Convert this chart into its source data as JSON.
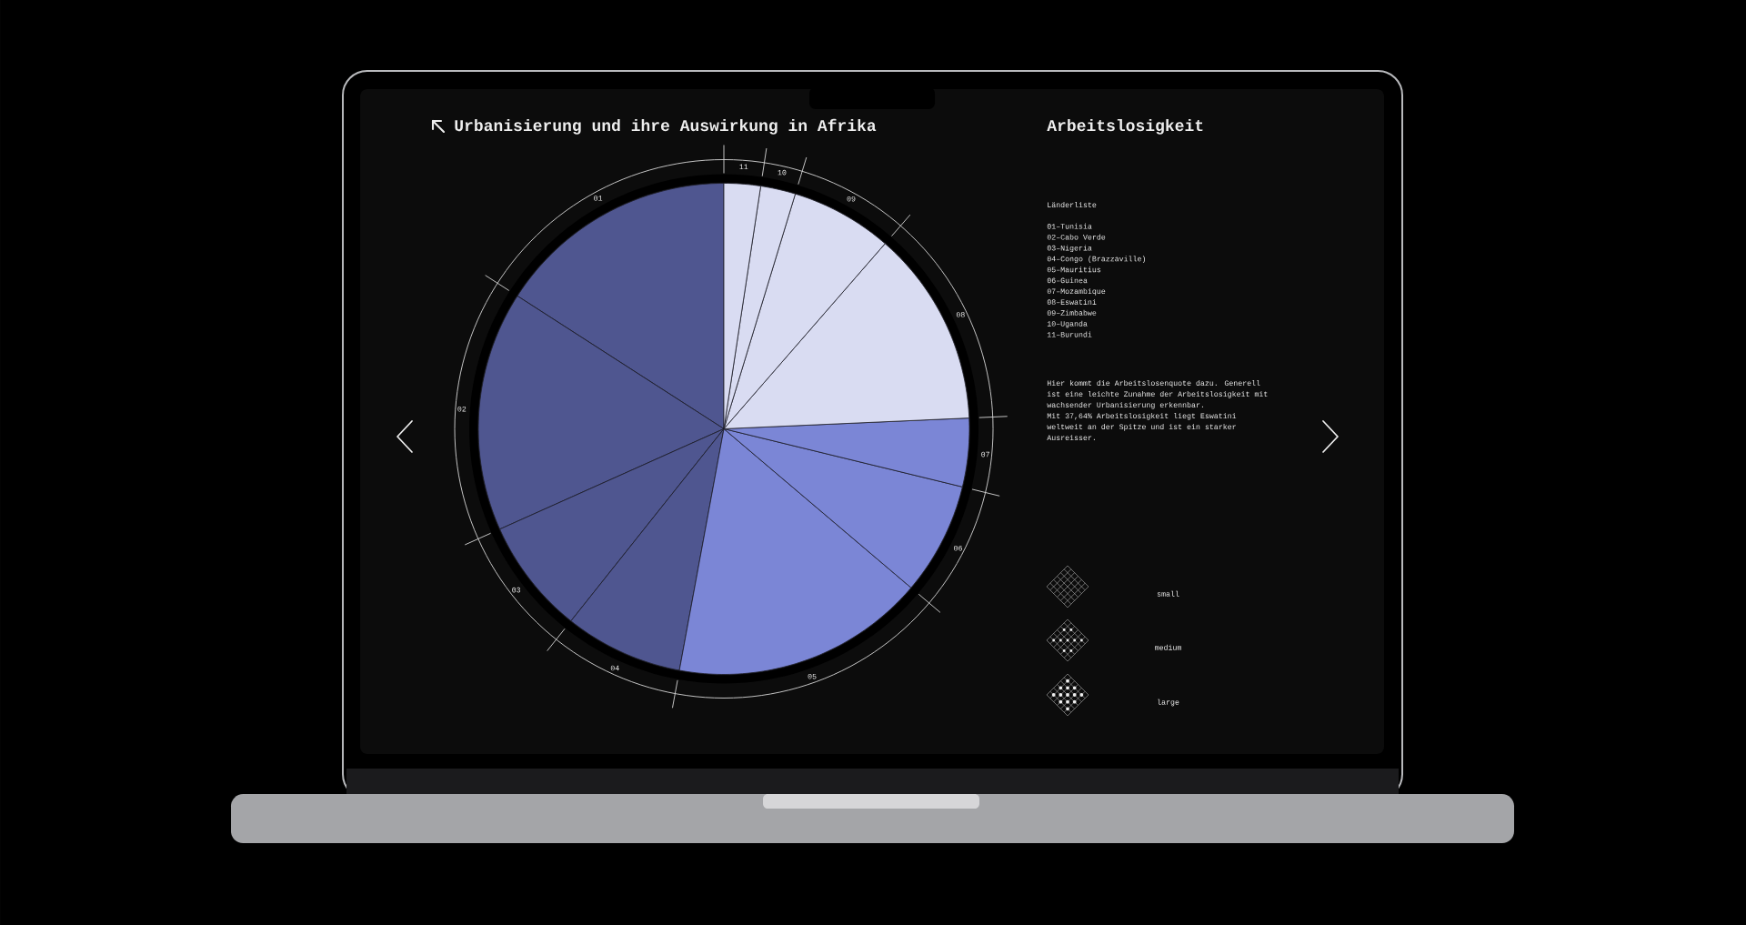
{
  "chart_data": {
    "type": "pie",
    "title": "Urbanisierung und ihre Auswirkung in Afrika",
    "subtitle": "Arbeitslosigkeit",
    "categories": [
      "01",
      "02",
      "03",
      "04",
      "05",
      "06",
      "07",
      "08",
      "09",
      "10",
      "11"
    ],
    "values": [
      15.9,
      15.8,
      7.6,
      7.8,
      16.7,
      7.4,
      4.5,
      12.9,
      6.7,
      2.3,
      2.4
    ],
    "colors": [
      "#4f5690",
      "#4f5690",
      "#4f5690",
      "#4f5690",
      "#7b86d6",
      "#7b86d6",
      "#7b86d6",
      "#d9dcf2",
      "#d9dcf2",
      "#d9dcf2",
      "#d9dcf2"
    ],
    "annotations": [
      "Länderliste",
      "01–Tunisia",
      "02–Cabo Verde",
      "03–Nigeria",
      "04–Congo (Brazzaville)",
      "05–Mauritius",
      "06–Guinea",
      "07–Mozambique",
      "08–Eswatini",
      "09–Zimbabwe",
      "10–Uganda",
      "11–Burundi",
      "Hier kommt die Arbeitslosenquote dazu. Generell ist eine leichte Zunahme der Arbeitslosigkeit mit wachsender Urbanisierung erkennbar.",
      "Mit 37,64% Arbeitslosigkeit liegt Eswatini weltweit an der Spitze und ist ein starker Ausreisser.",
      "small",
      "medium",
      "large"
    ]
  }
}
